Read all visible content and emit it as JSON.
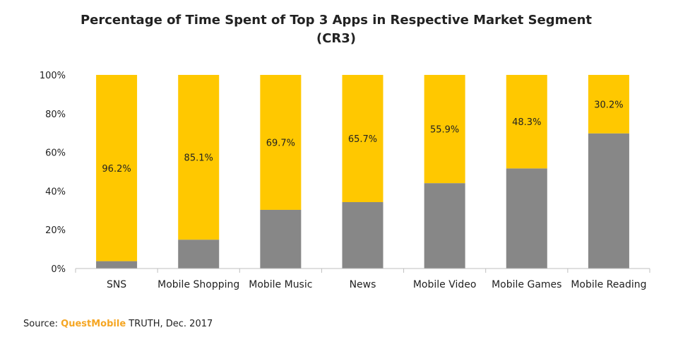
{
  "title": {
    "line1": "Percentage of Time Spent of Top 3 Apps in Respective Market Segment",
    "line2": "(CR3)"
  },
  "source": {
    "prefix": "Source: ",
    "brand": "QuestMobile",
    "suffix": " TRUTH, Dec. 2017"
  },
  "colors": {
    "top3": "#FFC800",
    "others": "#878787",
    "axis": "#bfbfbf",
    "brand": "#F5A623"
  },
  "chart_data": {
    "type": "bar",
    "stacked": true,
    "categories": [
      "SNS",
      "Mobile Shopping",
      "Mobile Music",
      "News",
      "Mobile Video",
      "Mobile Games",
      "Mobile Reading"
    ],
    "series": [
      {
        "values": [
          3.8,
          14.9,
          30.3,
          34.3,
          44.1,
          51.7,
          69.8
        ]
      },
      {
        "values": [
          96.2,
          85.1,
          69.7,
          65.7,
          55.9,
          48.3,
          30.2
        ]
      }
    ],
    "data_labels": [
      "96.2%",
      "85.1%",
      "69.7%",
      "65.7%",
      "55.9%",
      "48.3%",
      "30.2%"
    ],
    "yticks": [
      "0%",
      "20%",
      "40%",
      "60%",
      "80%",
      "100%"
    ],
    "ylim": [
      0,
      100
    ],
    "xlabel": "",
    "ylabel": "",
    "grid": false,
    "legend": "none"
  }
}
